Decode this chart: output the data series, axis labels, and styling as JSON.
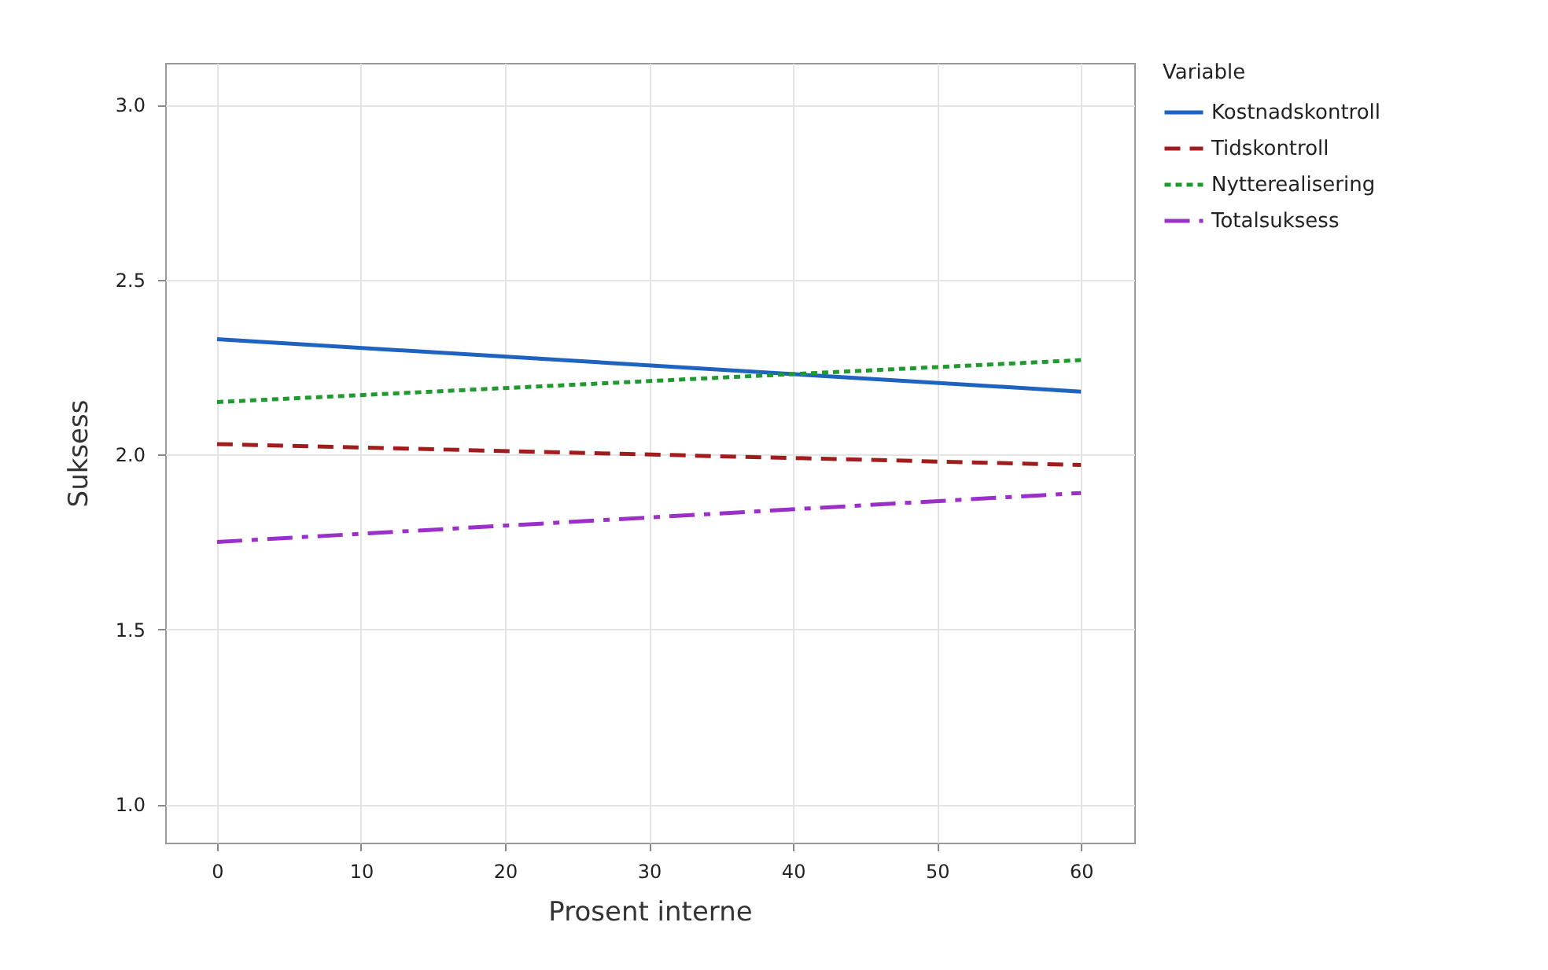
{
  "chart_data": {
    "type": "line",
    "xlabel": "Prosent interne",
    "ylabel": "Suksess",
    "legend_title": "Variable",
    "x": [
      0,
      60
    ],
    "series": [
      {
        "name": "Kostnadskontroll",
        "color": "#1f63c0",
        "values": [
          2.33,
          2.18
        ],
        "line_style": "solid"
      },
      {
        "name": "Tidskontroll",
        "color": "#a11c1c",
        "values": [
          2.03,
          1.97
        ],
        "line_style": "dashed"
      },
      {
        "name": "Nytterealisering",
        "color": "#1e9a2e",
        "values": [
          2.15,
          2.27
        ],
        "line_style": "dotted"
      },
      {
        "name": "Totalsuksess",
        "color": "#9b2fc9",
        "values": [
          1.75,
          1.89
        ],
        "line_style": "dashdot"
      }
    ],
    "xlim": [
      -3.6,
      63.7
    ],
    "xticks": [
      0,
      10,
      20,
      30,
      40,
      50,
      60
    ],
    "ylim": [
      0.89,
      3.12
    ],
    "yticks": [
      {
        "value": 1,
        "label": "1.0"
      },
      1.5,
      {
        "value": 2,
        "label": "2.0"
      },
      2.5,
      {
        "value": 3,
        "label": "3.0"
      }
    ],
    "grid": true,
    "legend": "right"
  }
}
